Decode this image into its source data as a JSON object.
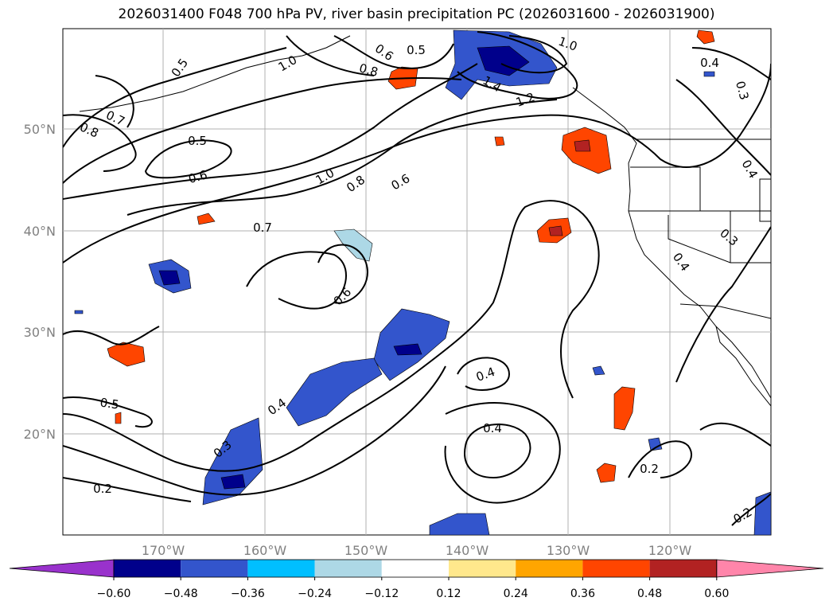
{
  "title": "2026031400 F048 700 hPa PV, river basin precipitation PC (2026031600 - 2026031900)",
  "latitude_ticks": [
    "50°N",
    "40°N",
    "30°N",
    "20°N"
  ],
  "longitude_ticks": [
    "170°W",
    "160°W",
    "150°W",
    "140°W",
    "130°W",
    "120°W"
  ],
  "contour_labels": [
    "0.5",
    "1.0",
    "0.6",
    "0.5",
    "1.0",
    "0.8",
    "1.4",
    "1.2",
    "0.4",
    "0.3",
    "0.7",
    "0.8",
    "0.5",
    "0.6",
    "1.0",
    "0.8",
    "0.6",
    "0.4",
    "0.7",
    "0.3",
    "0.4",
    "0.6",
    "0.4",
    "0.4",
    "0.5",
    "0.4",
    "0.3",
    "0.2",
    "0.2",
    "0.2"
  ],
  "colorbar": {
    "tick_labels": [
      "−0.60",
      "−0.48",
      "−0.36",
      "−0.24",
      "−0.12",
      "0.12",
      "0.24",
      "0.36",
      "0.48",
      "0.60"
    ],
    "colors": [
      "#9932cc",
      "#00008b",
      "#3355cc",
      "#00bfff",
      "#add8e6",
      "#ffffff",
      "#ffe88c",
      "#ffa500",
      "#ff4500",
      "#b22222",
      "#ff85aa"
    ]
  }
}
